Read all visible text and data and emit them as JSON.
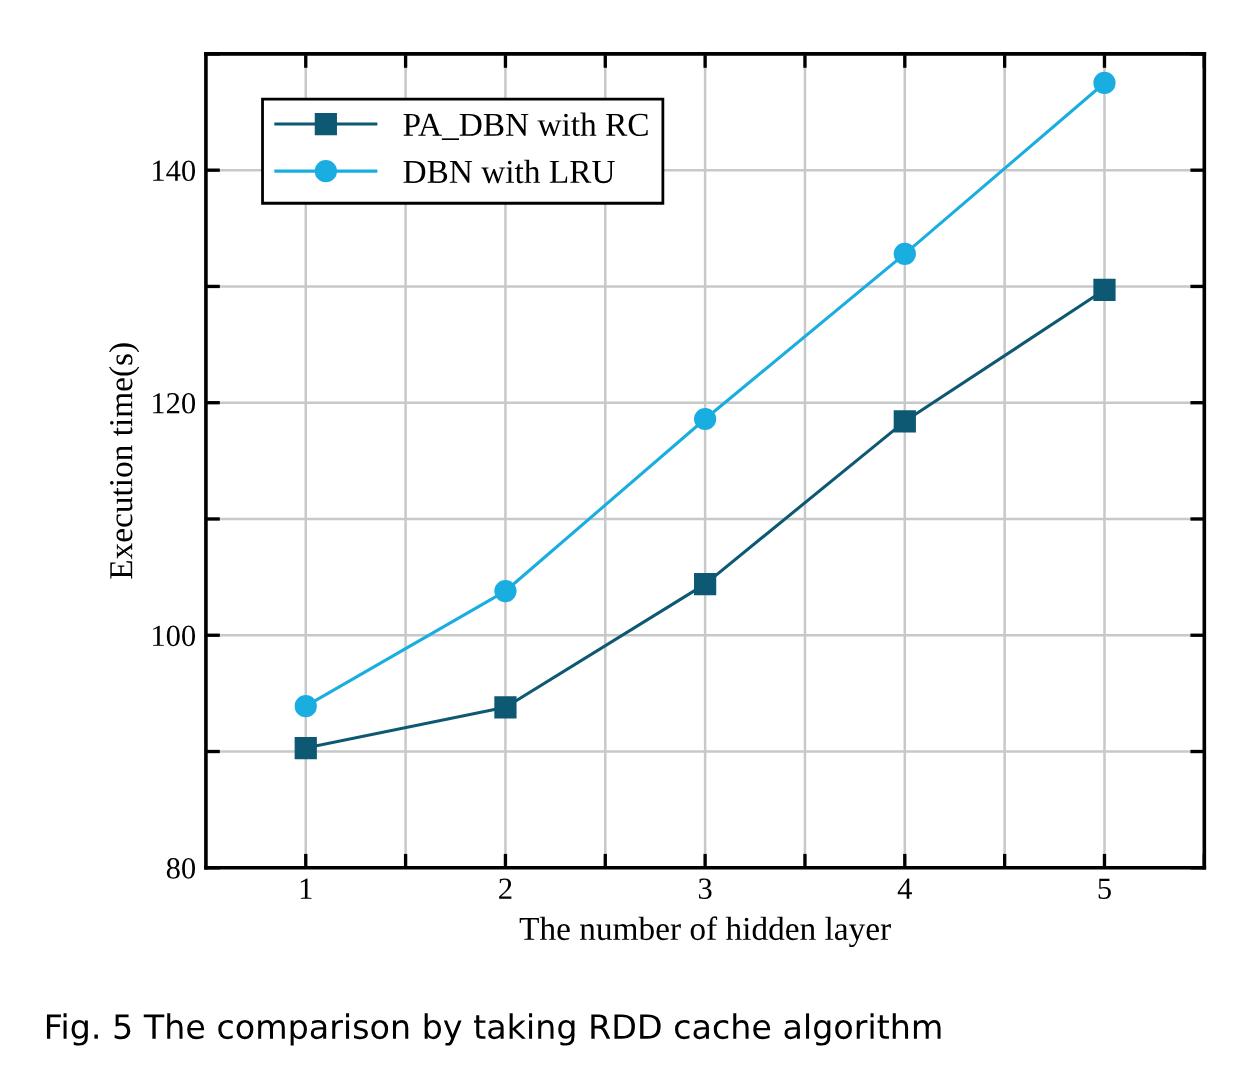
{
  "chart_data": {
    "type": "line",
    "xlabel": "The number of hidden layer",
    "ylabel": "Execution time(s)",
    "x": [
      1,
      2,
      3,
      4,
      5
    ],
    "series": [
      {
        "name": "PA_DBN with RC",
        "color": "#0d5872",
        "marker": "square",
        "values": [
          90.3,
          93.8,
          104.4,
          118.4,
          129.7
        ]
      },
      {
        "name": "DBN with LRU",
        "color": "#19ade0",
        "marker": "circle",
        "values": [
          93.9,
          103.8,
          118.6,
          132.8,
          147.5
        ]
      }
    ],
    "xlim": [
      0.5,
      5.5
    ],
    "xticks": [
      1,
      {
        "value": 1.5,
        "label": null
      },
      2,
      {
        "value": 2.5,
        "label": null
      },
      3,
      {
        "value": 3.5,
        "label": null
      },
      4,
      {
        "value": 4.5,
        "label": null
      },
      5,
      {
        "value": 5.5,
        "label": null
      }
    ],
    "ylim": [
      80,
      150
    ],
    "yticks": [
      80,
      {
        "value": 90,
        "label": null
      },
      100,
      {
        "value": 110,
        "label": null
      },
      120,
      {
        "value": 130,
        "label": null
      },
      140,
      {
        "value": 150,
        "label": null
      }
    ],
    "grid": true,
    "legend": "top left",
    "line_style": "solid",
    "annotations": [
      "Fig. 5 The comparison by taking RDD cache algorithm"
    ]
  }
}
